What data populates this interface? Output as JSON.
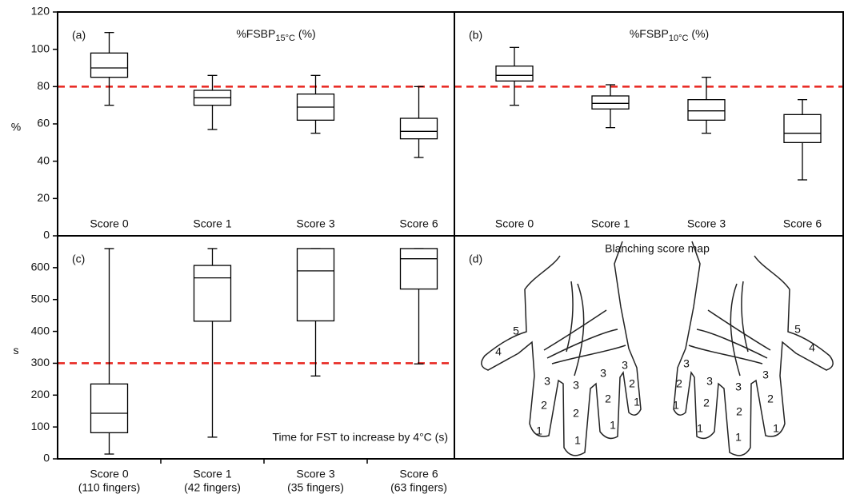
{
  "chart_data": [
    {
      "type": "box",
      "panel_label": "(a)",
      "title": "%FSBP",
      "title_subscript": "15°C",
      "title_suffix": "(%)",
      "ylabel": "%",
      "categories": [
        "Score 0",
        "Score 1",
        "Score 3",
        "Score 6"
      ],
      "boxes": [
        {
          "whislo": 70,
          "q1": 85,
          "med": 90,
          "q3": 98,
          "whishi": 109
        },
        {
          "whislo": 57,
          "q1": 70,
          "med": 74,
          "q3": 78,
          "whishi": 86
        },
        {
          "whislo": 55,
          "q1": 62,
          "med": 69,
          "q3": 76,
          "whishi": 86
        },
        {
          "whislo": 42,
          "q1": 52,
          "med": 56,
          "q3": 63,
          "whishi": 80
        }
      ],
      "color": "#000000",
      "reference_line": {
        "value": 80,
        "color": "#e8251f"
      },
      "ylim": [
        0,
        120
      ],
      "yticks": [
        0,
        20,
        40,
        60,
        80,
        100,
        120
      ]
    },
    {
      "type": "box",
      "panel_label": "(b)",
      "title": "%FSBP",
      "title_subscript": "10°C",
      "title_suffix": "(%)",
      "categories": [
        "Score 0",
        "Score 1",
        "Score 3",
        "Score 6"
      ],
      "boxes": [
        {
          "whislo": 70,
          "q1": 83,
          "med": 86,
          "q3": 91,
          "whishi": 101
        },
        {
          "whislo": 58,
          "q1": 68,
          "med": 71,
          "q3": 75,
          "whishi": 81
        },
        {
          "whislo": 55,
          "q1": 62,
          "med": 67,
          "q3": 73,
          "whishi": 85
        },
        {
          "whislo": 30,
          "q1": 50,
          "med": 55,
          "q3": 65,
          "whishi": 73
        }
      ],
      "color": "#000000",
      "reference_line": {
        "value": 80,
        "color": "#e8251f"
      },
      "ylim": [
        0,
        120
      ]
    },
    {
      "type": "box",
      "panel_label": "(c)",
      "ylabel": "s",
      "annotation": "Time for FST to increase by 4°C (s)",
      "categories": [
        "Score 0",
        "Score 1",
        "Score 3",
        "Score 6"
      ],
      "category_notes": [
        "(110 fingers)",
        "(42 fingers)",
        "(35 fingers)",
        "(63 fingers)"
      ],
      "boxes": [
        {
          "whislo": 15,
          "q1": 82,
          "med": 143,
          "q3": 235,
          "whishi": 660
        },
        {
          "whislo": 68,
          "q1": 432,
          "med": 568,
          "q3": 607,
          "whishi": 660
        },
        {
          "whislo": 260,
          "q1": 433,
          "med": 590,
          "q3": 660,
          "whishi": 660
        },
        {
          "whislo": 298,
          "q1": 533,
          "med": 628,
          "q3": 660,
          "whishi": 660
        }
      ],
      "color": "#000000",
      "reference_line": {
        "value": 300,
        "color": "#e8251f"
      },
      "ylim": [
        0,
        700
      ],
      "yticks": [
        0,
        100,
        200,
        300,
        400,
        500,
        600
      ]
    },
    {
      "type": "diagram",
      "panel_label": "(d)",
      "title": "Blanching score map",
      "score_labels": [
        "5",
        "4",
        "3",
        "2",
        "1",
        "3",
        "2",
        "1",
        "3",
        "2",
        "1",
        "3",
        "2",
        "1",
        "5",
        "4",
        "3",
        "2",
        "1",
        "3",
        "2",
        "1",
        "3",
        "2",
        "1",
        "3",
        "2",
        "1"
      ],
      "label_color": "#3b3b9e"
    }
  ]
}
